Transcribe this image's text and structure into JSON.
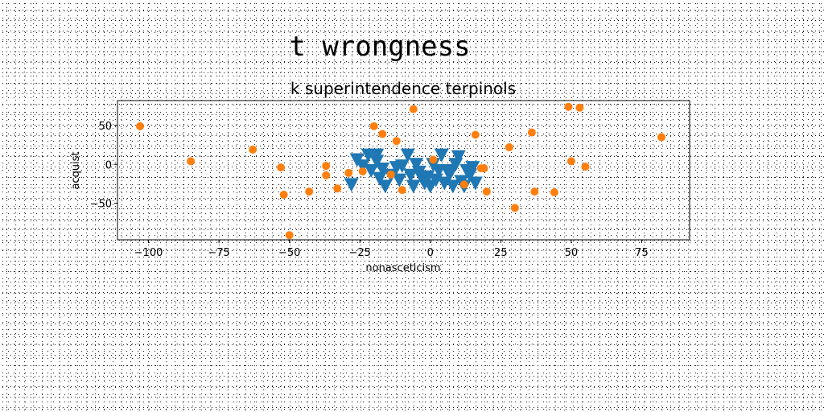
{
  "suptitle": "t wrongness",
  "chart_data": {
    "type": "scatter",
    "title": "k superintendence terpinols",
    "xlabel": "nonasceticism",
    "ylabel": "acquist",
    "xlim": [
      -111,
      92
    ],
    "ylim": [
      -97,
      82
    ],
    "xticks": [
      -100,
      -75,
      -50,
      -25,
      0,
      25,
      50,
      75
    ],
    "yticks": [
      -50,
      0,
      50
    ],
    "xtick_labels": [
      "−100",
      "−75",
      "−50",
      "−25",
      "0",
      "25",
      "50",
      "75"
    ],
    "ytick_labels": [
      "−50",
      "0",
      "50"
    ],
    "grid": false,
    "series": [
      {
        "marker": "triangle-down",
        "color": "#1f77b4",
        "points": [
          [
            -28,
            -26
          ],
          [
            -26,
            6
          ],
          [
            -24,
            -2
          ],
          [
            -22,
            12
          ],
          [
            -21,
            -8
          ],
          [
            -19,
            12
          ],
          [
            -19,
            4
          ],
          [
            -18,
            -18
          ],
          [
            -17,
            -6
          ],
          [
            -16,
            -28
          ],
          [
            -14,
            -14
          ],
          [
            -12,
            -4
          ],
          [
            -11,
            -20
          ],
          [
            -10,
            -2
          ],
          [
            -8,
            12
          ],
          [
            -7,
            -14
          ],
          [
            -6,
            -28
          ],
          [
            -5,
            0
          ],
          [
            -4,
            -10
          ],
          [
            -3,
            -18
          ],
          [
            -2,
            -24
          ],
          [
            -1,
            -16
          ],
          [
            0,
            -28
          ],
          [
            1,
            0
          ],
          [
            2,
            -20
          ],
          [
            3,
            -8
          ],
          [
            4,
            12
          ],
          [
            5,
            -24
          ],
          [
            6,
            -8
          ],
          [
            7,
            -12
          ],
          [
            8,
            -28
          ],
          [
            9,
            0
          ],
          [
            10,
            10
          ],
          [
            11,
            -22
          ],
          [
            12,
            -28
          ],
          [
            13,
            -8
          ],
          [
            14,
            -14
          ],
          [
            15,
            -4
          ],
          [
            16,
            -24
          ]
        ]
      },
      {
        "marker": "circle",
        "color": "#ff7f0e",
        "points": [
          [
            -103,
            49
          ],
          [
            -85,
            4
          ],
          [
            -63,
            19
          ],
          [
            -53,
            -4
          ],
          [
            -52,
            -39
          ],
          [
            -50,
            -91
          ],
          [
            -43,
            -35
          ],
          [
            -37,
            -14
          ],
          [
            -37,
            -2
          ],
          [
            -33,
            -31
          ],
          [
            -29,
            -11
          ],
          [
            -24,
            -9
          ],
          [
            -20,
            49
          ],
          [
            -17,
            39
          ],
          [
            -14,
            -13
          ],
          [
            -12,
            30
          ],
          [
            -10,
            -33
          ],
          [
            -6,
            71
          ],
          [
            1,
            6
          ],
          [
            12,
            -26
          ],
          [
            16,
            38
          ],
          [
            18,
            -5
          ],
          [
            19,
            -5
          ],
          [
            20,
            -35
          ],
          [
            28,
            22
          ],
          [
            30,
            -56
          ],
          [
            36,
            41
          ],
          [
            37,
            -35
          ],
          [
            44,
            -36
          ],
          [
            49,
            74
          ],
          [
            50,
            4
          ],
          [
            53,
            73
          ],
          [
            55,
            -3
          ],
          [
            82,
            35
          ]
        ]
      }
    ]
  }
}
